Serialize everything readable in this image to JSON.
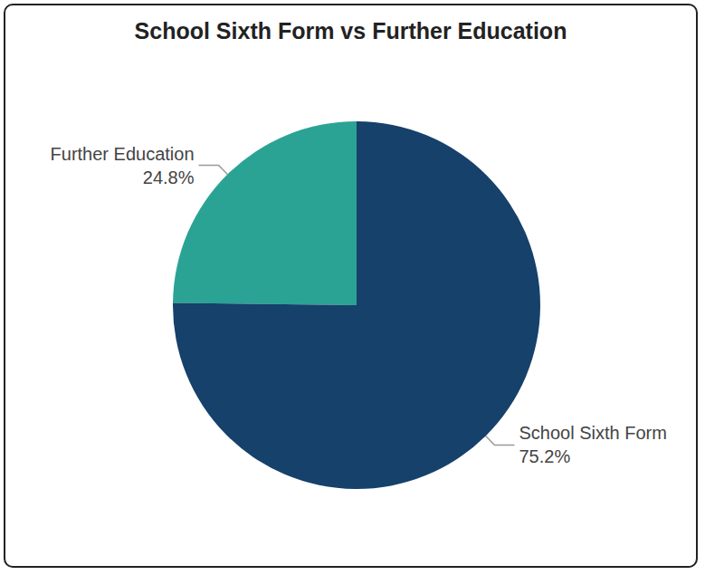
{
  "chart_data": {
    "type": "pie",
    "title": "School Sixth Form vs Further Education",
    "categories": [
      "Further Education",
      "School Sixth Form"
    ],
    "values": [
      24.8,
      75.2
    ],
    "value_labels": [
      "24.8%",
      "75.2%"
    ],
    "colors": [
      "#2aa395",
      "#15416b"
    ],
    "data_labels": true
  }
}
